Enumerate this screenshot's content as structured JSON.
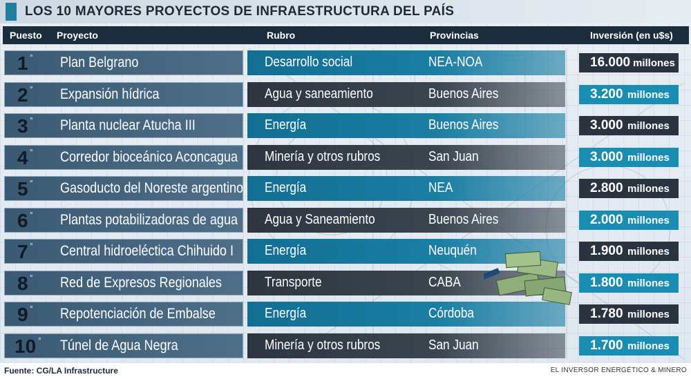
{
  "title": "LOS 10 MAYORES PROYECTOS DE INFRAESTRUCTURA DEL PAÍS",
  "headers": {
    "puesto": "Puesto",
    "proyecto": "Proyecto",
    "rubro": "Rubro",
    "provincias": "Provincias",
    "inversion": "Inversión (en u$s)"
  },
  "degree_symbol": "°",
  "unit": "millones",
  "rows": [
    {
      "rank": "1",
      "proyecto": "Plan Belgrano",
      "rubro": "Desarrollo social",
      "provincias": "NEA-NOA",
      "inversion": "16.000"
    },
    {
      "rank": "2",
      "proyecto": "Expansión hídrica",
      "rubro": "Agua y saneamiento",
      "provincias": "Buenos Aires",
      "inversion": "3.200"
    },
    {
      "rank": "3",
      "proyecto": "Planta nuclear Atucha III",
      "rubro": "Energía",
      "provincias": "Buenos Aires",
      "inversion": "3.000"
    },
    {
      "rank": "4",
      "proyecto": "Corredor bioceánico Aconcagua",
      "rubro": "Minería y otros rubros",
      "provincias": "San Juan",
      "inversion": "3.000"
    },
    {
      "rank": "5",
      "proyecto": "Gasoducto del Noreste argentino",
      "rubro": "Energía",
      "provincias": "NEA",
      "inversion": "2.800"
    },
    {
      "rank": "6",
      "proyecto": "Plantas potabilizadoras de agua",
      "rubro": "Agua y Saneamiento",
      "provincias": "Buenos Aires",
      "inversion": "2.000"
    },
    {
      "rank": "7",
      "proyecto": "Central hidroeléctica Chihuido I",
      "rubro": "Energía",
      "provincias": "Neuquén",
      "inversion": "1.900"
    },
    {
      "rank": "8",
      "proyecto": "Red de Expresos Regionales",
      "rubro": "Transporte",
      "provincias": "CABA",
      "inversion": "1.800"
    },
    {
      "rank": "9",
      "proyecto": "Repotenciación de Embalse",
      "rubro": "Energía",
      "provincias": "Córdoba",
      "inversion": "1.780"
    },
    {
      "rank": "10",
      "proyecto": "Túnel de Agua Negra",
      "rubro": "Minería y otros rubros",
      "provincias": "San Juan",
      "inversion": "1.700"
    }
  ],
  "footer": {
    "source": "Fuente: CG/LA Infrastructure",
    "publisher": "EL INVERSOR ENERGÉTICO & MINERO"
  },
  "colors": {
    "teal": "#1a7ea3",
    "dark": "#2d3640",
    "accent": "#1f7f9e",
    "header": "#1b2d3d"
  },
  "icons": [
    "money-stack-icon",
    "curved-arrow-icon"
  ]
}
